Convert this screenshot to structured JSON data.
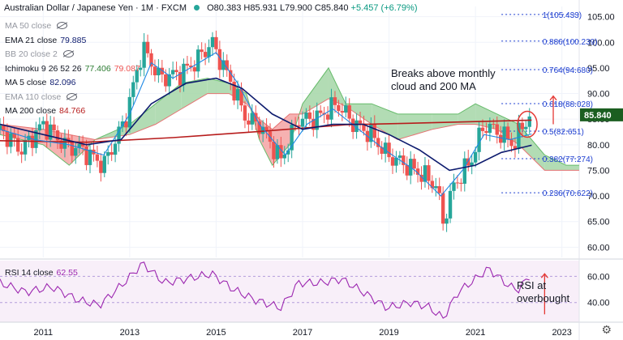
{
  "header": {
    "symbol": "Australian Dollar / Japanese Yen · 1M · FXCM",
    "o": "O80.383",
    "h": "H85.931",
    "l": "L79.900",
    "c": "C85.840",
    "chg": "+5.457 (+6.79%)"
  },
  "indicators": [
    {
      "label": "MA 50 close",
      "value": "",
      "value2": "",
      "hidden": true,
      "color": "#787b86"
    },
    {
      "label": "EMA 21 close",
      "value": "79.885",
      "value2": "",
      "hidden": false,
      "color": "#131722"
    },
    {
      "label": "BB 20 close 2",
      "value": "",
      "value2": "",
      "hidden": true,
      "color": "#787b86"
    },
    {
      "label": "Ichimoku 9 26 52 26",
      "value": "77.406",
      "value2": "79.087",
      "hidden": false,
      "color": "#131722"
    },
    {
      "label": "MA 5 close",
      "value": "82.096",
      "value2": "",
      "hidden": false,
      "color": "#131722"
    },
    {
      "label": "EMA 110 close",
      "value": "",
      "value2": "",
      "hidden": true,
      "color": "#787b86"
    },
    {
      "label": "MA 200 close",
      "value": "84.766",
      "value2": "",
      "hidden": false,
      "color": "#131722"
    }
  ],
  "annotations": {
    "breakout": "Breaks above monthly cloud and 200 MA",
    "rsi": "RSI at overbought"
  },
  "rsi_legend": {
    "label": "RSI 14 close",
    "value": "62.55"
  },
  "last_price": "85.840",
  "colors": {
    "up": "#26a69a",
    "down": "#ef5350",
    "ma200": "#b71c1c",
    "ema21": "#0d1b6e",
    "ma5": "#1e88e5",
    "cloud_up": "#a5d6a7",
    "cloud_down": "#f5a3a3",
    "fib": "#1e3fd0",
    "rsi": "#9c27b0",
    "arrow": "#e53935"
  },
  "chart_data": {
    "type": "candlestick",
    "x_ticks": [
      "2011",
      "2013",
      "2015",
      "2017",
      "2019",
      "2021",
      "2023"
    ],
    "y_ticks": [
      60,
      65,
      70,
      75,
      80,
      85,
      90,
      95,
      100,
      105
    ],
    "ylim": [
      58,
      107
    ],
    "rsi_ticks": [
      40,
      60
    ],
    "rsi_ylim": [
      25,
      72
    ],
    "fib_levels": [
      {
        "label": "1(105.433)",
        "value": 105.433
      },
      {
        "label": "0.886(100.239)",
        "value": 100.239
      },
      {
        "label": "0.764(94.680)",
        "value": 94.68
      },
      {
        "label": "0.618(88.028)",
        "value": 88.028
      },
      {
        "label": "0.5(82.651)",
        "value": 82.651
      },
      {
        "label": "0.382(77.274)",
        "value": 77.274
      },
      {
        "label": "0.236(70.622)",
        "value": 70.622
      }
    ],
    "price_keypoints": [
      {
        "x": 2010.0,
        "y": 83
      },
      {
        "x": 2010.5,
        "y": 79
      },
      {
        "x": 2011.0,
        "y": 84
      },
      {
        "x": 2011.5,
        "y": 80
      },
      {
        "x": 2011.9,
        "y": 79
      },
      {
        "x": 2012.4,
        "y": 76
      },
      {
        "x": 2012.9,
        "y": 85
      },
      {
        "x": 2013.3,
        "y": 99
      },
      {
        "x": 2013.7,
        "y": 93
      },
      {
        "x": 2014.2,
        "y": 94
      },
      {
        "x": 2014.5,
        "y": 96
      },
      {
        "x": 2014.9,
        "y": 100
      },
      {
        "x": 2015.3,
        "y": 93
      },
      {
        "x": 2015.7,
        "y": 85
      },
      {
        "x": 2016.0,
        "y": 84
      },
      {
        "x": 2016.5,
        "y": 77
      },
      {
        "x": 2016.9,
        "y": 85
      },
      {
        "x": 2017.3,
        "y": 85
      },
      {
        "x": 2017.8,
        "y": 88
      },
      {
        "x": 2018.2,
        "y": 84
      },
      {
        "x": 2018.6,
        "y": 82
      },
      {
        "x": 2018.95,
        "y": 78
      },
      {
        "x": 2019.4,
        "y": 76
      },
      {
        "x": 2019.8,
        "y": 74
      },
      {
        "x": 2020.1,
        "y": 72
      },
      {
        "x": 2020.25,
        "y": 65
      },
      {
        "x": 2020.5,
        "y": 72
      },
      {
        "x": 2020.9,
        "y": 77
      },
      {
        "x": 2021.2,
        "y": 84
      },
      {
        "x": 2021.6,
        "y": 82
      },
      {
        "x": 2021.9,
        "y": 80
      },
      {
        "x": 2022.1,
        "y": 84
      },
      {
        "x": 2022.3,
        "y": 85.84
      }
    ],
    "ma200": [
      {
        "x": 2010.0,
        "y": 80.8
      },
      {
        "x": 2012.0,
        "y": 80.5
      },
      {
        "x": 2014.0,
        "y": 81.4
      },
      {
        "x": 2016.0,
        "y": 82.6
      },
      {
        "x": 2018.0,
        "y": 83.9
      },
      {
        "x": 2020.0,
        "y": 84.3
      },
      {
        "x": 2022.3,
        "y": 84.8
      }
    ],
    "ema21": [
      {
        "x": 2010.0,
        "y": 84
      },
      {
        "x": 2011.0,
        "y": 82
      },
      {
        "x": 2012.0,
        "y": 80
      },
      {
        "x": 2012.8,
        "y": 81
      },
      {
        "x": 2013.5,
        "y": 88
      },
      {
        "x": 2014.3,
        "y": 92
      },
      {
        "x": 2015.0,
        "y": 93
      },
      {
        "x": 2015.6,
        "y": 91
      },
      {
        "x": 2016.3,
        "y": 86
      },
      {
        "x": 2017.0,
        "y": 83
      },
      {
        "x": 2017.7,
        "y": 84
      },
      {
        "x": 2018.4,
        "y": 84
      },
      {
        "x": 2019.0,
        "y": 82
      },
      {
        "x": 2019.7,
        "y": 79
      },
      {
        "x": 2020.4,
        "y": 75
      },
      {
        "x": 2021.0,
        "y": 76
      },
      {
        "x": 2021.6,
        "y": 78.5
      },
      {
        "x": 2022.3,
        "y": 79.9
      }
    ],
    "ma5": [
      {
        "x": 2010.0,
        "y": 83
      },
      {
        "x": 2010.8,
        "y": 81
      },
      {
        "x": 2011.6,
        "y": 80
      },
      {
        "x": 2012.4,
        "y": 78
      },
      {
        "x": 2013.0,
        "y": 86
      },
      {
        "x": 2013.5,
        "y": 96
      },
      {
        "x": 2014.0,
        "y": 93
      },
      {
        "x": 2014.6,
        "y": 96
      },
      {
        "x": 2015.0,
        "y": 98
      },
      {
        "x": 2015.5,
        "y": 92
      },
      {
        "x": 2016.0,
        "y": 84
      },
      {
        "x": 2016.6,
        "y": 78
      },
      {
        "x": 2017.1,
        "y": 84
      },
      {
        "x": 2017.7,
        "y": 87
      },
      {
        "x": 2018.3,
        "y": 83
      },
      {
        "x": 2018.9,
        "y": 79
      },
      {
        "x": 2019.6,
        "y": 75
      },
      {
        "x": 2020.2,
        "y": 70
      },
      {
        "x": 2020.7,
        "y": 75
      },
      {
        "x": 2021.2,
        "y": 82
      },
      {
        "x": 2021.8,
        "y": 81
      },
      {
        "x": 2022.3,
        "y": 82.1
      }
    ],
    "cloud": [
      {
        "x": 2010.0,
        "a": 82,
        "b": 84
      },
      {
        "x": 2011.0,
        "a": 80,
        "b": 83
      },
      {
        "x": 2011.6,
        "a": 76,
        "b": 82
      },
      {
        "x": 2012.2,
        "a": 81,
        "b": 81
      },
      {
        "x": 2013.0,
        "a": 84,
        "b": 82
      },
      {
        "x": 2013.6,
        "a": 88,
        "b": 84
      },
      {
        "x": 2014.2,
        "a": 92,
        "b": 87
      },
      {
        "x": 2014.8,
        "a": 93,
        "b": 90
      },
      {
        "x": 2015.3,
        "a": 92,
        "b": 90
      },
      {
        "x": 2015.7,
        "a": 90,
        "b": 88
      },
      {
        "x": 2016.0,
        "a": 81,
        "b": 85
      },
      {
        "x": 2016.3,
        "a": 76,
        "b": 83
      },
      {
        "x": 2016.7,
        "a": 80,
        "b": 86
      },
      {
        "x": 2017.0,
        "a": 88,
        "b": 86
      },
      {
        "x": 2017.6,
        "a": 95,
        "b": 89
      },
      {
        "x": 2018.0,
        "a": 88,
        "b": 87.5
      },
      {
        "x": 2018.6,
        "a": 88,
        "b": 84
      },
      {
        "x": 2019.2,
        "a": 86,
        "b": 81
      },
      {
        "x": 2020.0,
        "a": 86,
        "b": 83
      },
      {
        "x": 2020.6,
        "a": 86,
        "b": 84
      },
      {
        "x": 2021.0,
        "a": 88,
        "b": 84
      },
      {
        "x": 2021.5,
        "a": 86,
        "b": 83
      },
      {
        "x": 2022.0,
        "a": 84,
        "b": 80
      },
      {
        "x": 2022.6,
        "a": 78,
        "b": 75
      },
      {
        "x": 2023.1,
        "a": 76,
        "b": 75
      },
      {
        "x": 2023.4,
        "a": 76,
        "b": 75
      }
    ],
    "rsi_keypoints": [
      {
        "x": 2010.0,
        "y": 55
      },
      {
        "x": 2010.6,
        "y": 48
      },
      {
        "x": 2011.2,
        "y": 52
      },
      {
        "x": 2011.8,
        "y": 42
      },
      {
        "x": 2012.3,
        "y": 38
      },
      {
        "x": 2012.9,
        "y": 56
      },
      {
        "x": 2013.3,
        "y": 70
      },
      {
        "x": 2013.8,
        "y": 55
      },
      {
        "x": 2014.3,
        "y": 58
      },
      {
        "x": 2014.9,
        "y": 62
      },
      {
        "x": 2015.4,
        "y": 50
      },
      {
        "x": 2015.9,
        "y": 42
      },
      {
        "x": 2016.5,
        "y": 36
      },
      {
        "x": 2016.9,
        "y": 55
      },
      {
        "x": 2017.4,
        "y": 55
      },
      {
        "x": 2017.9,
        "y": 58
      },
      {
        "x": 2018.4,
        "y": 48
      },
      {
        "x": 2018.95,
        "y": 36
      },
      {
        "x": 2019.5,
        "y": 40
      },
      {
        "x": 2019.9,
        "y": 37
      },
      {
        "x": 2020.25,
        "y": 28
      },
      {
        "x": 2020.6,
        "y": 48
      },
      {
        "x": 2021.0,
        "y": 58
      },
      {
        "x": 2021.3,
        "y": 66
      },
      {
        "x": 2021.8,
        "y": 52
      },
      {
        "x": 2022.0,
        "y": 50
      },
      {
        "x": 2022.3,
        "y": 62.55
      }
    ]
  }
}
